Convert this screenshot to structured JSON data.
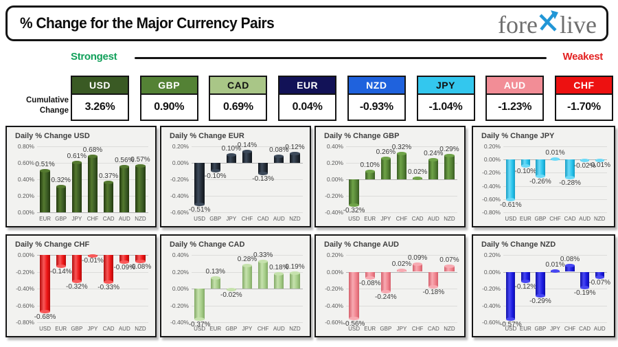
{
  "header": {
    "title": "% Change for the Major Currency Pairs",
    "logo": {
      "part1": "fore",
      "part2": "live",
      "x_color": "#2196d6",
      "text_color": "#6e6e6e"
    }
  },
  "scale": {
    "strongest": "Strongest",
    "weakest": "Weakest",
    "strongest_color": "#11a05a",
    "weakest_color": "#e32222",
    "line_color": "#141414"
  },
  "cumulative": {
    "label_line1": "Cumulative",
    "label_line2": "Change",
    "currencies": [
      {
        "code": "USD",
        "value": "3.26%",
        "bg": "#3a5a24",
        "fg": "#ffffff"
      },
      {
        "code": "GBP",
        "value": "0.90%",
        "bg": "#548235",
        "fg": "#ffffff"
      },
      {
        "code": "CAD",
        "value": "0.69%",
        "bg": "#a9c687",
        "fg": "#111111"
      },
      {
        "code": "EUR",
        "value": "0.04%",
        "bg": "#121257",
        "fg": "#ffffff"
      },
      {
        "code": "NZD",
        "value": "-0.93%",
        "bg": "#1f62dd",
        "fg": "#ffffff"
      },
      {
        "code": "JPY",
        "value": "-1.04%",
        "bg": "#33c7ee",
        "fg": "#111111"
      },
      {
        "code": "AUD",
        "value": "-1.23%",
        "bg": "#f28d96",
        "fg": "#ffffff"
      },
      {
        "code": "CHF",
        "value": "-1.70%",
        "bg": "#ed1111",
        "fg": "#ffffff"
      }
    ]
  },
  "chart_data": [
    {
      "type": "bar",
      "title": "Daily % Change USD",
      "code": "usd",
      "categories": [
        "EUR",
        "GBP",
        "JPY",
        "CHF",
        "CAD",
        "AUD",
        "NZD"
      ],
      "values": [
        0.51,
        0.32,
        0.61,
        0.68,
        0.37,
        0.56,
        0.57
      ],
      "ylim": [
        0.0,
        0.8
      ],
      "ytick_step": 0.2,
      "grid": true,
      "legend": false,
      "xlabel": "",
      "ylabel": "",
      "color": "#3a5a24",
      "light": "#54792f",
      "dark": "#22390f"
    },
    {
      "type": "bar",
      "title": "Daily % Change EUR",
      "code": "eur",
      "categories": [
        "USD",
        "GBP",
        "JPY",
        "CHF",
        "CAD",
        "AUD",
        "NZD"
      ],
      "values": [
        -0.51,
        -0.1,
        0.1,
        0.14,
        -0.13,
        0.08,
        0.12
      ],
      "ylim": [
        -0.6,
        0.2
      ],
      "ytick_step": 0.2,
      "grid": true,
      "legend": false,
      "xlabel": "",
      "ylabel": "",
      "color": "#232b35",
      "light": "#3d4a5a",
      "dark": "#10151c"
    },
    {
      "type": "bar",
      "title": "Daily % Change GBP",
      "code": "gbp",
      "categories": [
        "USD",
        "EUR",
        "JPY",
        "CHF",
        "CAD",
        "AUD",
        "NZD"
      ],
      "values": [
        -0.32,
        0.1,
        0.26,
        0.32,
        0.02,
        0.24,
        0.29
      ],
      "ylim": [
        -0.4,
        0.4
      ],
      "ytick_step": 0.2,
      "grid": true,
      "legend": false,
      "xlabel": "",
      "ylabel": "",
      "color": "#548235",
      "light": "#6fa348",
      "dark": "#395c22"
    },
    {
      "type": "bar",
      "title": "Daily % Change JPY",
      "code": "jpy",
      "categories": [
        "USD",
        "EUR",
        "GBP",
        "CHF",
        "CAD",
        "AUD",
        "NZD"
      ],
      "values": [
        -0.61,
        -0.1,
        -0.26,
        0.01,
        -0.28,
        -0.02,
        -0.01
      ],
      "ylim": [
        -0.8,
        0.2
      ],
      "ytick_step": 0.2,
      "grid": true,
      "legend": false,
      "xlabel": "",
      "ylabel": "",
      "color": "#27c3ec",
      "light": "#6cdaf7",
      "dark": "#149dc4"
    },
    {
      "type": "bar",
      "title": "Daily % Change CHF",
      "code": "chf",
      "categories": [
        "USD",
        "EUR",
        "GBP",
        "JPY",
        "CAD",
        "AUD",
        "NZD"
      ],
      "values": [
        -0.68,
        -0.14,
        -0.32,
        -0.01,
        -0.33,
        -0.09,
        -0.08
      ],
      "ylim": [
        -0.8,
        0.0
      ],
      "ytick_step": 0.2,
      "grid": true,
      "legend": false,
      "xlabel": "",
      "ylabel": "",
      "color": "#ec1313",
      "light": "#f85858",
      "dark": "#b40a0a"
    },
    {
      "type": "bar",
      "title": "Daily % Change CAD",
      "code": "cad",
      "categories": [
        "USD",
        "EUR",
        "GBP",
        "JPY",
        "CHF",
        "AUD",
        "NZD"
      ],
      "values": [
        -0.37,
        0.13,
        -0.02,
        0.28,
        0.33,
        0.18,
        0.19
      ],
      "ylim": [
        -0.4,
        0.4
      ],
      "ytick_step": 0.2,
      "grid": true,
      "legend": false,
      "xlabel": "",
      "ylabel": "",
      "color": "#a5cc87",
      "light": "#c6e2ad",
      "dark": "#82a965"
    },
    {
      "type": "bar",
      "title": "Daily % Change AUD",
      "code": "aud",
      "categories": [
        "USD",
        "EUR",
        "GBP",
        "JPY",
        "CHF",
        "CAD",
        "NZD"
      ],
      "values": [
        -0.56,
        -0.08,
        -0.24,
        0.02,
        0.09,
        -0.18,
        0.07
      ],
      "ylim": [
        -0.6,
        0.2
      ],
      "ytick_step": 0.2,
      "grid": true,
      "legend": false,
      "xlabel": "",
      "ylabel": "",
      "color": "#f0828d",
      "light": "#f8aab2",
      "dark": "#d55f6b"
    },
    {
      "type": "bar",
      "title": "Daily % Change NZD",
      "code": "nzd",
      "categories": [
        "USD",
        "EUR",
        "GBP",
        "JPY",
        "CHF",
        "CAD",
        "AUD"
      ],
      "values": [
        -0.57,
        -0.12,
        -0.29,
        0.01,
        0.08,
        -0.19,
        -0.07
      ],
      "ylim": [
        -0.6,
        0.2
      ],
      "ytick_step": 0.2,
      "grid": true,
      "legend": false,
      "xlabel": "",
      "ylabel": "",
      "color": "#1a1ae0",
      "light": "#4848f2",
      "dark": "#0e0ea8"
    }
  ]
}
